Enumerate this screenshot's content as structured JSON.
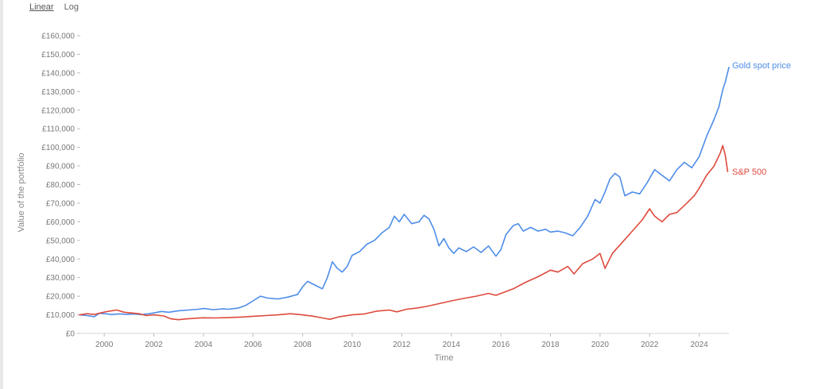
{
  "controls": {
    "linear_label": "Linear",
    "log_label": "Log"
  },
  "chart_data": {
    "type": "line",
    "title": "",
    "xlabel": "Time",
    "ylabel": "Value of the portfolio",
    "xlim": [
      1999.0,
      2025.2
    ],
    "ylim": [
      0,
      160000
    ],
    "y_ticks": [
      0,
      10000,
      20000,
      30000,
      40000,
      50000,
      60000,
      70000,
      80000,
      90000,
      100000,
      110000,
      120000,
      130000,
      140000,
      150000,
      160000
    ],
    "y_tick_labels": [
      "£0",
      "£10,000",
      "£20,000",
      "£30,000",
      "£40,000",
      "£50,000",
      "£60,000",
      "£70,000",
      "£80,000",
      "£90,000",
      "£100,000",
      "£110,000",
      "£120,000",
      "£130,000",
      "£140,000",
      "£150,000",
      "£160,000"
    ],
    "x_ticks": [
      2000,
      2002,
      2004,
      2006,
      2008,
      2010,
      2012,
      2014,
      2016,
      2018,
      2020,
      2022,
      2024
    ],
    "x_tick_labels": [
      "2000",
      "2002",
      "2004",
      "2006",
      "2008",
      "2010",
      "2012",
      "2014",
      "2016",
      "2018",
      "2020",
      "2022",
      "2024"
    ],
    "grid": false,
    "legend": "inline labels at line ends",
    "series": [
      {
        "name": "Gold spot price",
        "color": "#4e8de8",
        "points": [
          [
            1999.0,
            10000
          ],
          [
            1999.3,
            9600
          ],
          [
            1999.6,
            9000
          ],
          [
            1999.8,
            10800
          ],
          [
            2000.0,
            10600
          ],
          [
            2000.3,
            10200
          ],
          [
            2000.6,
            10500
          ],
          [
            2000.9,
            10300
          ],
          [
            2001.2,
            10400
          ],
          [
            2001.5,
            10100
          ],
          [
            2001.8,
            10600
          ],
          [
            2002.0,
            11000
          ],
          [
            2002.3,
            11800
          ],
          [
            2002.6,
            11400
          ],
          [
            2003.0,
            12200
          ],
          [
            2003.4,
            12600
          ],
          [
            2003.8,
            13000
          ],
          [
            2004.0,
            13400
          ],
          [
            2004.4,
            12800
          ],
          [
            2004.8,
            13200
          ],
          [
            2005.0,
            13000
          ],
          [
            2005.4,
            13600
          ],
          [
            2005.7,
            15000
          ],
          [
            2006.0,
            17500
          ],
          [
            2006.3,
            20000
          ],
          [
            2006.6,
            19000
          ],
          [
            2007.0,
            18500
          ],
          [
            2007.4,
            19500
          ],
          [
            2007.8,
            21000
          ],
          [
            2008.0,
            25000
          ],
          [
            2008.2,
            28000
          ],
          [
            2008.5,
            26000
          ],
          [
            2008.8,
            24000
          ],
          [
            2009.0,
            30000
          ],
          [
            2009.2,
            38500
          ],
          [
            2009.4,
            35000
          ],
          [
            2009.6,
            33000
          ],
          [
            2009.8,
            36000
          ],
          [
            2010.0,
            42000
          ],
          [
            2010.3,
            44000
          ],
          [
            2010.6,
            48000
          ],
          [
            2010.9,
            50000
          ],
          [
            2011.2,
            54000
          ],
          [
            2011.5,
            57000
          ],
          [
            2011.7,
            63000
          ],
          [
            2011.9,
            60000
          ],
          [
            2012.1,
            64000
          ],
          [
            2012.4,
            59000
          ],
          [
            2012.7,
            60000
          ],
          [
            2012.9,
            63500
          ],
          [
            2013.1,
            61500
          ],
          [
            2013.3,
            56000
          ],
          [
            2013.5,
            47000
          ],
          [
            2013.7,
            51000
          ],
          [
            2013.9,
            46000
          ],
          [
            2014.1,
            43000
          ],
          [
            2014.3,
            46000
          ],
          [
            2014.6,
            44000
          ],
          [
            2014.9,
            46500
          ],
          [
            2015.2,
            43500
          ],
          [
            2015.5,
            47000
          ],
          [
            2015.8,
            41500
          ],
          [
            2016.0,
            45000
          ],
          [
            2016.2,
            53000
          ],
          [
            2016.5,
            58000
          ],
          [
            2016.7,
            59000
          ],
          [
            2016.9,
            55000
          ],
          [
            2017.2,
            57000
          ],
          [
            2017.5,
            55000
          ],
          [
            2017.8,
            56000
          ],
          [
            2018.0,
            54500
          ],
          [
            2018.3,
            55000
          ],
          [
            2018.6,
            54000
          ],
          [
            2018.9,
            52500
          ],
          [
            2019.2,
            57000
          ],
          [
            2019.5,
            63000
          ],
          [
            2019.8,
            72000
          ],
          [
            2020.0,
            70000
          ],
          [
            2020.2,
            76000
          ],
          [
            2020.4,
            83000
          ],
          [
            2020.6,
            86000
          ],
          [
            2020.8,
            84000
          ],
          [
            2021.0,
            74000
          ],
          [
            2021.3,
            76000
          ],
          [
            2021.6,
            75000
          ],
          [
            2021.9,
            81000
          ],
          [
            2022.2,
            88000
          ],
          [
            2022.5,
            85000
          ],
          [
            2022.8,
            82000
          ],
          [
            2023.1,
            88000
          ],
          [
            2023.4,
            92000
          ],
          [
            2023.7,
            89000
          ],
          [
            2024.0,
            95000
          ],
          [
            2024.3,
            106000
          ],
          [
            2024.6,
            115000
          ],
          [
            2024.8,
            122000
          ],
          [
            2024.95,
            131000
          ],
          [
            2025.05,
            135000
          ],
          [
            2025.2,
            143000
          ]
        ]
      },
      {
        "name": "S&P 500",
        "color": "#de4a3d",
        "points": [
          [
            1999.0,
            10000
          ],
          [
            1999.3,
            10600
          ],
          [
            1999.6,
            10200
          ],
          [
            1999.9,
            11200
          ],
          [
            2000.2,
            12000
          ],
          [
            2000.5,
            12600
          ],
          [
            2000.8,
            11400
          ],
          [
            2001.1,
            11000
          ],
          [
            2001.4,
            10600
          ],
          [
            2001.7,
            9600
          ],
          [
            2002.0,
            10000
          ],
          [
            2002.4,
            9400
          ],
          [
            2002.7,
            7800
          ],
          [
            2003.0,
            7400
          ],
          [
            2003.3,
            7800
          ],
          [
            2003.7,
            8200
          ],
          [
            2004.0,
            8400
          ],
          [
            2004.5,
            8300
          ],
          [
            2005.0,
            8500
          ],
          [
            2005.5,
            8800
          ],
          [
            2006.0,
            9200
          ],
          [
            2006.5,
            9600
          ],
          [
            2007.0,
            10000
          ],
          [
            2007.5,
            10600
          ],
          [
            2008.0,
            10000
          ],
          [
            2008.4,
            9300
          ],
          [
            2008.8,
            8300
          ],
          [
            2009.1,
            7600
          ],
          [
            2009.5,
            9000
          ],
          [
            2010.0,
            10000
          ],
          [
            2010.5,
            10500
          ],
          [
            2011.0,
            12000
          ],
          [
            2011.5,
            12600
          ],
          [
            2011.8,
            11600
          ],
          [
            2012.2,
            13000
          ],
          [
            2012.6,
            13600
          ],
          [
            2013.0,
            14500
          ],
          [
            2013.5,
            16000
          ],
          [
            2014.0,
            17500
          ],
          [
            2014.5,
            18800
          ],
          [
            2015.0,
            20000
          ],
          [
            2015.5,
            21500
          ],
          [
            2015.8,
            20500
          ],
          [
            2016.0,
            21500
          ],
          [
            2016.5,
            24000
          ],
          [
            2017.0,
            27500
          ],
          [
            2017.5,
            30500
          ],
          [
            2018.0,
            34000
          ],
          [
            2018.3,
            33000
          ],
          [
            2018.7,
            36000
          ],
          [
            2018.95,
            32000
          ],
          [
            2019.3,
            37500
          ],
          [
            2019.7,
            40000
          ],
          [
            2020.0,
            43000
          ],
          [
            2020.2,
            35000
          ],
          [
            2020.5,
            43000
          ],
          [
            2020.9,
            49000
          ],
          [
            2021.3,
            55000
          ],
          [
            2021.7,
            61000
          ],
          [
            2022.0,
            67000
          ],
          [
            2022.2,
            63000
          ],
          [
            2022.5,
            60000
          ],
          [
            2022.8,
            64000
          ],
          [
            2023.1,
            65000
          ],
          [
            2023.5,
            70000
          ],
          [
            2023.8,
            74000
          ],
          [
            2024.0,
            78000
          ],
          [
            2024.3,
            85000
          ],
          [
            2024.6,
            90000
          ],
          [
            2024.85,
            97000
          ],
          [
            2024.95,
            101000
          ],
          [
            2025.05,
            96000
          ],
          [
            2025.15,
            87000
          ]
        ]
      }
    ]
  }
}
